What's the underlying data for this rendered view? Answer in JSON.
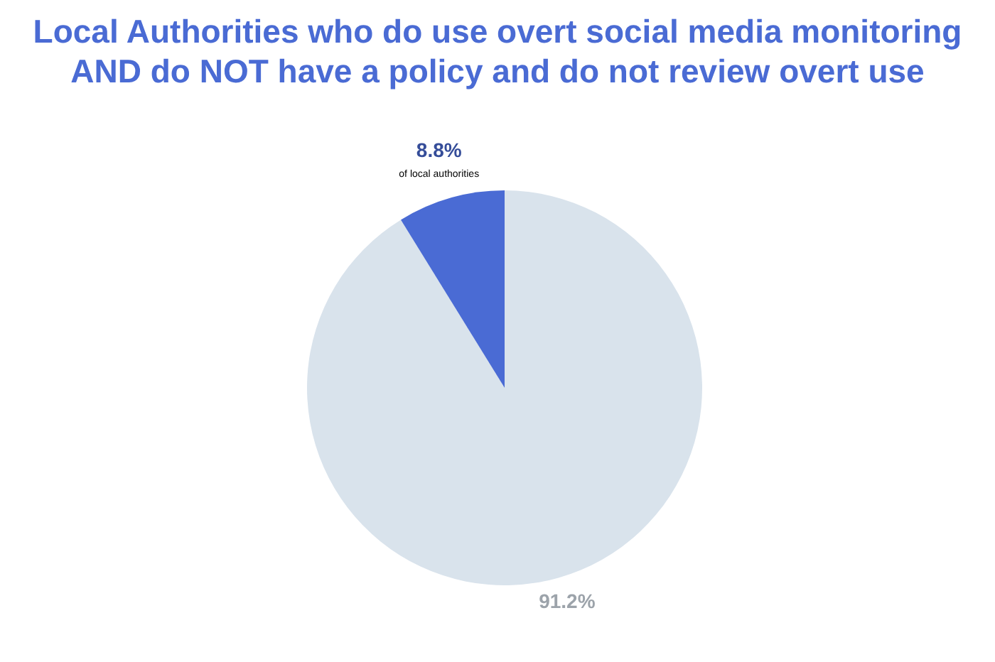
{
  "chart_data": {
    "type": "pie",
    "title": "Local Authorities who do use overt social media monitoring AND do NOT have a policy and do not review overt use",
    "categories": [
      null,
      null
    ],
    "values": [
      91.2,
      8.8
    ],
    "colors": [
      "#d9e3ec",
      "#4a6bd4"
    ],
    "value_labels": [
      "91.2%",
      "8.8%"
    ],
    "annotations": [
      "of local authorities"
    ]
  }
}
